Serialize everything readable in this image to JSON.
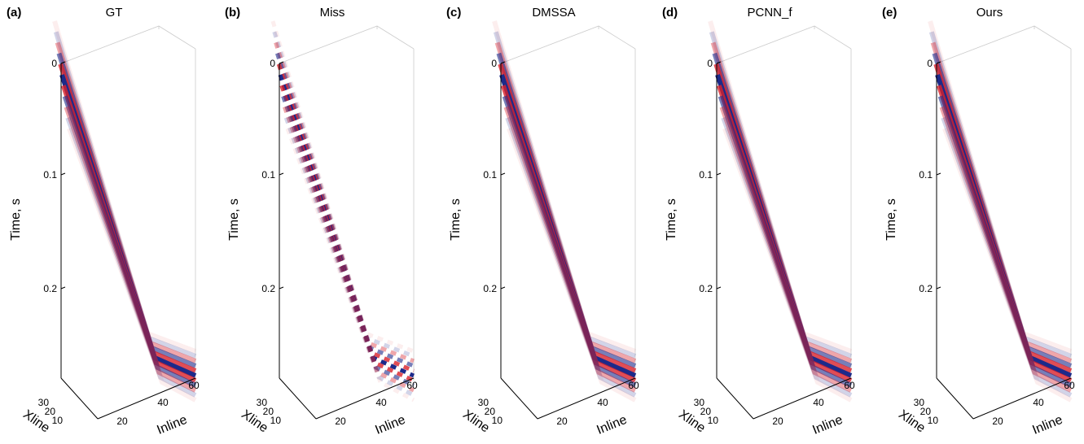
{
  "panels": [
    {
      "label": "(a)",
      "title": "GT"
    },
    {
      "label": "(b)",
      "title": "Miss"
    },
    {
      "label": "(c)",
      "title": "DMSSA"
    },
    {
      "label": "(d)",
      "title": "PCNN_f"
    },
    {
      "label": "(e)",
      "title": "Ours"
    }
  ],
  "axes": {
    "time_label": "Time, s",
    "time_ticks": [
      "0",
      "0.1",
      "0.2"
    ],
    "xline_label": "Xline",
    "xline_ticks": [
      "30",
      "20",
      "10"
    ],
    "inline_label": "Inline",
    "inline_ticks": [
      "20",
      "40",
      "60"
    ]
  }
}
